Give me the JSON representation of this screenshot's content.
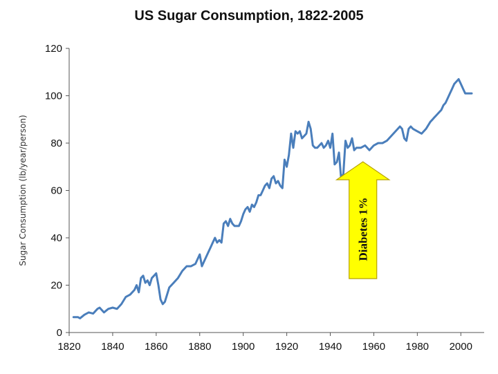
{
  "chart_data": {
    "type": "line",
    "title": "US Sugar Consumption, 1822-2005",
    "xlabel": "",
    "ylabel": "Sugar Consumption (lb/year/person)",
    "xlim": [
      1820,
      2005
    ],
    "ylim": [
      0,
      120
    ],
    "x_ticks": [
      "1820",
      "1840",
      "1860",
      "1880",
      "1900",
      "1920",
      "1940",
      "1960",
      "1980",
      "2000"
    ],
    "y_ticks": [
      "0",
      "20",
      "40",
      "60",
      "80",
      "100",
      "120"
    ],
    "grid": false,
    "legend": "none",
    "line_color": "#4a7ebb",
    "series": [
      {
        "points": [
          [
            1822,
            6.5
          ],
          [
            1824,
            6.5
          ],
          [
            1825,
            6
          ],
          [
            1827,
            7.5
          ],
          [
            1829,
            8.5
          ],
          [
            1831,
            8
          ],
          [
            1833,
            10
          ],
          [
            1834,
            10.5
          ],
          [
            1836,
            8.5
          ],
          [
            1838,
            10
          ],
          [
            1840,
            10.5
          ],
          [
            1842,
            10
          ],
          [
            1844,
            12
          ],
          [
            1846,
            15
          ],
          [
            1848,
            16
          ],
          [
            1850,
            18
          ],
          [
            1851,
            20
          ],
          [
            1852,
            17
          ],
          [
            1853,
            23
          ],
          [
            1854,
            24
          ],
          [
            1855,
            21
          ],
          [
            1856,
            22
          ],
          [
            1857,
            20
          ],
          [
            1858,
            23
          ],
          [
            1859,
            24
          ],
          [
            1860,
            25
          ],
          [
            1861,
            20
          ],
          [
            1862,
            14
          ],
          [
            1863,
            12
          ],
          [
            1864,
            13
          ],
          [
            1866,
            19
          ],
          [
            1868,
            21
          ],
          [
            1870,
            23
          ],
          [
            1872,
            26
          ],
          [
            1874,
            28
          ],
          [
            1876,
            28
          ],
          [
            1878,
            29
          ],
          [
            1880,
            33
          ],
          [
            1881,
            28
          ],
          [
            1882,
            30
          ],
          [
            1884,
            34
          ],
          [
            1885,
            36
          ],
          [
            1886,
            38
          ],
          [
            1887,
            40
          ],
          [
            1888,
            38
          ],
          [
            1889,
            39
          ],
          [
            1890,
            38
          ],
          [
            1891,
            46
          ],
          [
            1892,
            47
          ],
          [
            1893,
            45
          ],
          [
            1894,
            48
          ],
          [
            1895,
            46
          ],
          [
            1896,
            45
          ],
          [
            1897,
            45
          ],
          [
            1898,
            45
          ],
          [
            1899,
            47
          ],
          [
            1900,
            50
          ],
          [
            1901,
            52
          ],
          [
            1902,
            53
          ],
          [
            1903,
            51
          ],
          [
            1904,
            54
          ],
          [
            1905,
            53
          ],
          [
            1906,
            55
          ],
          [
            1907,
            58
          ],
          [
            1908,
            58
          ],
          [
            1909,
            60
          ],
          [
            1910,
            62
          ],
          [
            1911,
            63
          ],
          [
            1912,
            61
          ],
          [
            1913,
            65
          ],
          [
            1914,
            66
          ],
          [
            1915,
            63
          ],
          [
            1916,
            64
          ],
          [
            1917,
            62
          ],
          [
            1918,
            61
          ],
          [
            1919,
            73
          ],
          [
            1920,
            70
          ],
          [
            1921,
            75
          ],
          [
            1922,
            84
          ],
          [
            1923,
            78
          ],
          [
            1924,
            85
          ],
          [
            1925,
            84
          ],
          [
            1926,
            85
          ],
          [
            1927,
            82
          ],
          [
            1928,
            83
          ],
          [
            1929,
            84
          ],
          [
            1930,
            89
          ],
          [
            1931,
            86
          ],
          [
            1932,
            79
          ],
          [
            1933,
            78
          ],
          [
            1934,
            78
          ],
          [
            1935,
            79
          ],
          [
            1936,
            80
          ],
          [
            1937,
            78
          ],
          [
            1938,
            79
          ],
          [
            1939,
            81
          ],
          [
            1940,
            78
          ],
          [
            1941,
            84
          ],
          [
            1942,
            71
          ],
          [
            1943,
            72
          ],
          [
            1944,
            76
          ],
          [
            1945,
            65
          ],
          [
            1946,
            67
          ],
          [
            1947,
            81
          ],
          [
            1948,
            78
          ],
          [
            1949,
            79
          ],
          [
            1950,
            82
          ],
          [
            1951,
            77
          ],
          [
            1952,
            78
          ],
          [
            1954,
            78
          ],
          [
            1956,
            79
          ],
          [
            1958,
            77
          ],
          [
            1960,
            79
          ],
          [
            1962,
            80
          ],
          [
            1964,
            80
          ],
          [
            1966,
            81
          ],
          [
            1968,
            83
          ],
          [
            1970,
            85
          ],
          [
            1972,
            87
          ],
          [
            1973,
            86
          ],
          [
            1974,
            82
          ],
          [
            1975,
            81
          ],
          [
            1976,
            86
          ],
          [
            1977,
            87
          ],
          [
            1978,
            86
          ],
          [
            1980,
            85
          ],
          [
            1982,
            84
          ],
          [
            1984,
            86
          ],
          [
            1986,
            89
          ],
          [
            1987,
            90
          ],
          [
            1988,
            91
          ],
          [
            1989,
            92
          ],
          [
            1990,
            93
          ],
          [
            1991,
            94
          ],
          [
            1992,
            96
          ],
          [
            1993,
            97
          ],
          [
            1994,
            99
          ],
          [
            1995,
            101
          ],
          [
            1996,
            103
          ],
          [
            1997,
            105
          ],
          [
            1998,
            106
          ],
          [
            1999,
            107
          ],
          [
            2000,
            105
          ],
          [
            2001,
            103
          ],
          [
            2002,
            101
          ],
          [
            2003,
            101
          ],
          [
            2005,
            101
          ]
        ]
      }
    ],
    "annotations": [
      {
        "text": "Diabetes 1%",
        "x": 1955,
        "y": 73,
        "arrow_color": "#ffff00",
        "arrow_edge": "#b8a200"
      }
    ]
  }
}
